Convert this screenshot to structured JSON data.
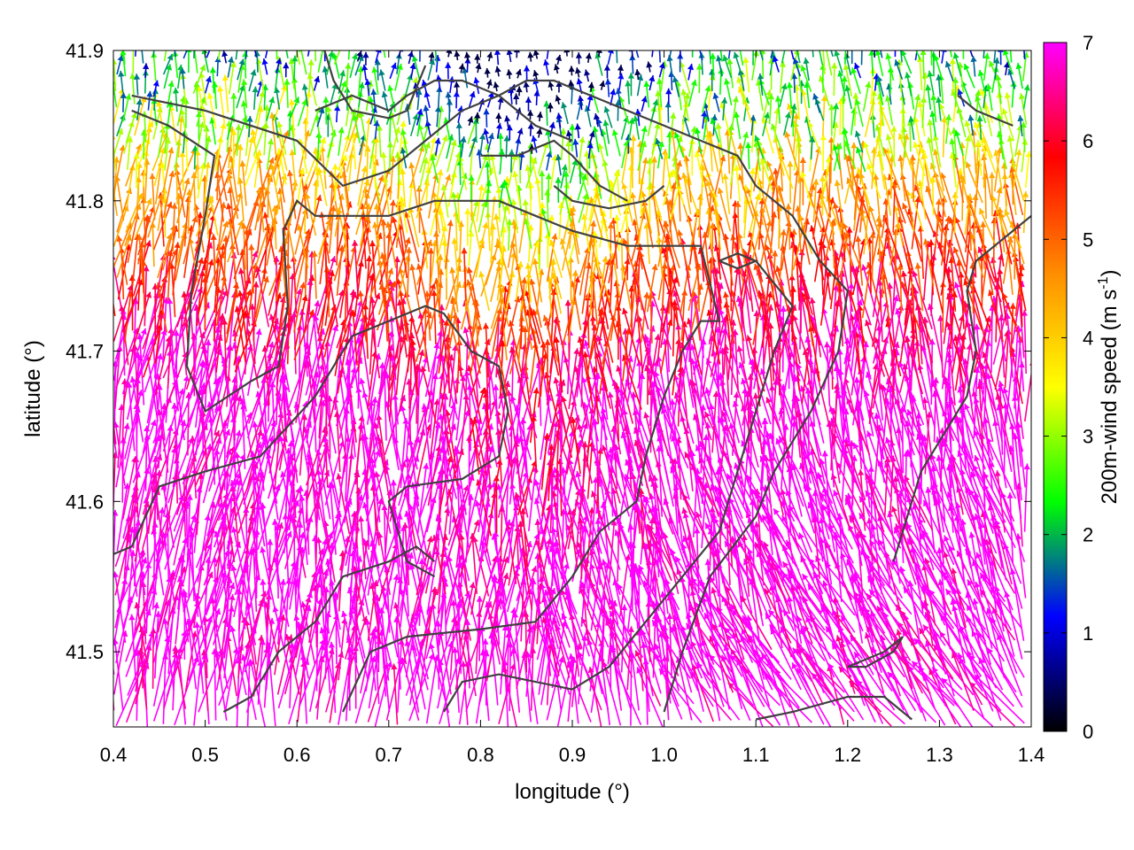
{
  "chart_data": {
    "type": "vector-field",
    "xlabel": "longitude (°)",
    "ylabel": "latitude (°)",
    "xlim": [
      0.4,
      1.4
    ],
    "ylim": [
      41.45,
      41.9
    ],
    "xticks": [
      "0.4",
      "0.5",
      "0.6",
      "0.7",
      "0.8",
      "0.9",
      "1.0",
      "1.1",
      "1.2",
      "1.3",
      "1.4"
    ],
    "yticks": [
      "41.5",
      "41.6",
      "41.7",
      "41.8",
      "41.9"
    ],
    "colorbar": {
      "label_main": "200m-wind speed (m s",
      "label_sup": "-1",
      "label_end": ")",
      "range": [
        0,
        7
      ],
      "ticks": [
        "0",
        "1",
        "2",
        "3",
        "4",
        "5",
        "6",
        "7"
      ],
      "colors": [
        "#000000",
        "#0000ff",
        "#00ff00",
        "#ffff00",
        "#ff8c00",
        "#ff0000",
        "#ff00ff"
      ]
    },
    "contour_color": "#404040",
    "contours": [
      [
        [
          0.4,
          41.565
        ],
        [
          0.42,
          41.57
        ],
        [
          0.45,
          41.61
        ],
        [
          0.5,
          41.62
        ],
        [
          0.56,
          41.63
        ],
        [
          0.62,
          41.67
        ],
        [
          0.66,
          41.71
        ],
        [
          0.7,
          41.72
        ],
        [
          0.74,
          41.73
        ],
        [
          0.76,
          41.725
        ],
        [
          0.79,
          41.7
        ],
        [
          0.82,
          41.69
        ],
        [
          0.83,
          41.66
        ],
        [
          0.82,
          41.63
        ],
        [
          0.78,
          41.615
        ],
        [
          0.72,
          41.61
        ],
        [
          0.7,
          41.6
        ],
        [
          0.72,
          41.56
        ],
        [
          0.75,
          41.55
        ]
      ],
      [
        [
          0.52,
          41.46
        ],
        [
          0.55,
          41.47
        ],
        [
          0.58,
          41.5
        ],
        [
          0.62,
          41.52
        ],
        [
          0.65,
          41.55
        ],
        [
          0.7,
          41.56
        ],
        [
          0.73,
          41.57
        ],
        [
          0.75,
          41.56
        ]
      ],
      [
        [
          0.65,
          41.46
        ],
        [
          0.68,
          41.5
        ],
        [
          0.72,
          41.51
        ],
        [
          0.8,
          41.515
        ],
        [
          0.86,
          41.52
        ],
        [
          0.9,
          41.55
        ],
        [
          0.93,
          41.58
        ],
        [
          0.97,
          41.6
        ],
        [
          0.98,
          41.63
        ],
        [
          1.0,
          41.67
        ],
        [
          1.02,
          41.7
        ],
        [
          1.04,
          41.72
        ],
        [
          1.06,
          41.72
        ],
        [
          1.04,
          41.77
        ],
        [
          0.96,
          41.77
        ],
        [
          0.9,
          41.78
        ],
        [
          0.86,
          41.79
        ],
        [
          0.82,
          41.8
        ],
        [
          0.79,
          41.8
        ],
        [
          0.75,
          41.8
        ],
        [
          0.7,
          41.79
        ],
        [
          0.62,
          41.79
        ],
        [
          0.6,
          41.8
        ],
        [
          0.585,
          41.78
        ],
        [
          0.59,
          41.73
        ],
        [
          0.58,
          41.69
        ],
        [
          0.55,
          41.68
        ],
        [
          0.5,
          41.66
        ],
        [
          0.48,
          41.69
        ],
        [
          0.485,
          41.74
        ],
        [
          0.5,
          41.79
        ],
        [
          0.51,
          41.83
        ],
        [
          0.46,
          41.85
        ],
        [
          0.42,
          41.86
        ]
      ],
      [
        [
          0.42,
          41.87
        ],
        [
          0.5,
          41.86
        ],
        [
          0.55,
          41.85
        ],
        [
          0.6,
          41.84
        ],
        [
          0.65,
          41.81
        ],
        [
          0.7,
          41.82
        ],
        [
          0.74,
          41.84
        ],
        [
          0.78,
          41.86
        ],
        [
          0.82,
          41.87
        ],
        [
          0.85,
          41.88
        ],
        [
          0.88,
          41.88
        ],
        [
          0.92,
          41.87
        ],
        [
          0.96,
          41.86
        ],
        [
          1.0,
          41.85
        ],
        [
          1.04,
          41.84
        ],
        [
          1.08,
          41.83
        ],
        [
          1.1,
          41.81
        ],
        [
          1.14,
          41.79
        ],
        [
          1.17,
          41.76
        ],
        [
          1.2,
          41.74
        ],
        [
          1.19,
          41.7
        ],
        [
          1.16,
          41.66
        ],
        [
          1.12,
          41.62
        ],
        [
          1.1,
          41.59
        ],
        [
          1.05,
          41.55
        ],
        [
          1.02,
          41.5
        ],
        [
          1.0,
          41.46
        ]
      ],
      [
        [
          0.76,
          41.46
        ],
        [
          0.78,
          41.48
        ],
        [
          0.82,
          41.485
        ],
        [
          0.86,
          41.48
        ],
        [
          0.9,
          41.475
        ],
        [
          0.94,
          41.49
        ],
        [
          0.98,
          41.52
        ],
        [
          1.02,
          41.55
        ],
        [
          1.06,
          41.58
        ],
        [
          1.08,
          41.62
        ],
        [
          1.1,
          41.66
        ],
        [
          1.12,
          41.7
        ],
        [
          1.14,
          41.73
        ],
        [
          1.1,
          41.76
        ]
      ],
      [
        [
          1.06,
          41.76
        ],
        [
          1.08,
          41.765
        ],
        [
          1.1,
          41.76
        ],
        [
          1.08,
          41.755
        ],
        [
          1.06,
          41.76
        ]
      ],
      [
        [
          1.32,
          41.87
        ],
        [
          1.34,
          41.86
        ],
        [
          1.38,
          41.85
        ]
      ],
      [
        [
          1.4,
          41.79
        ],
        [
          1.36,
          41.77
        ],
        [
          1.34,
          41.76
        ],
        [
          1.33,
          41.74
        ],
        [
          1.34,
          41.7
        ],
        [
          1.33,
          41.67
        ],
        [
          1.3,
          41.64
        ],
        [
          1.28,
          41.62
        ],
        [
          1.27,
          41.6
        ],
        [
          1.25,
          41.56
        ]
      ],
      [
        [
          1.1,
          41.455
        ],
        [
          1.14,
          41.46
        ],
        [
          1.2,
          41.47
        ],
        [
          1.24,
          41.47
        ],
        [
          1.27,
          41.455
        ]
      ],
      [
        [
          1.2,
          41.49
        ],
        [
          1.22,
          41.49
        ],
        [
          1.25,
          41.5
        ],
        [
          1.26,
          41.51
        ],
        [
          1.24,
          41.5
        ],
        [
          1.2,
          41.49
        ]
      ],
      [
        [
          0.62,
          41.86
        ],
        [
          0.66,
          41.87
        ],
        [
          0.7,
          41.86
        ],
        [
          0.72,
          41.87
        ],
        [
          0.75,
          41.88
        ],
        [
          0.78,
          41.88
        ],
        [
          0.8,
          41.875
        ],
        [
          0.82,
          41.87
        ],
        [
          0.84,
          41.86
        ],
        [
          0.86,
          41.85
        ],
        [
          0.88,
          41.845
        ],
        [
          0.9,
          41.84
        ]
      ],
      [
        [
          0.63,
          41.9
        ],
        [
          0.64,
          41.88
        ],
        [
          0.66,
          41.86
        ],
        [
          0.7,
          41.855
        ],
        [
          0.72,
          41.86
        ],
        [
          0.74,
          41.89
        ]
      ],
      [
        [
          0.8,
          41.83
        ],
        [
          0.84,
          41.83
        ],
        [
          0.88,
          41.84
        ],
        [
          0.9,
          41.83
        ],
        [
          0.93,
          41.81
        ],
        [
          0.96,
          41.8
        ]
      ],
      [
        [
          0.88,
          41.81
        ],
        [
          0.9,
          41.8
        ],
        [
          0.94,
          41.795
        ],
        [
          0.98,
          41.8
        ],
        [
          1.0,
          41.81
        ]
      ]
    ]
  }
}
